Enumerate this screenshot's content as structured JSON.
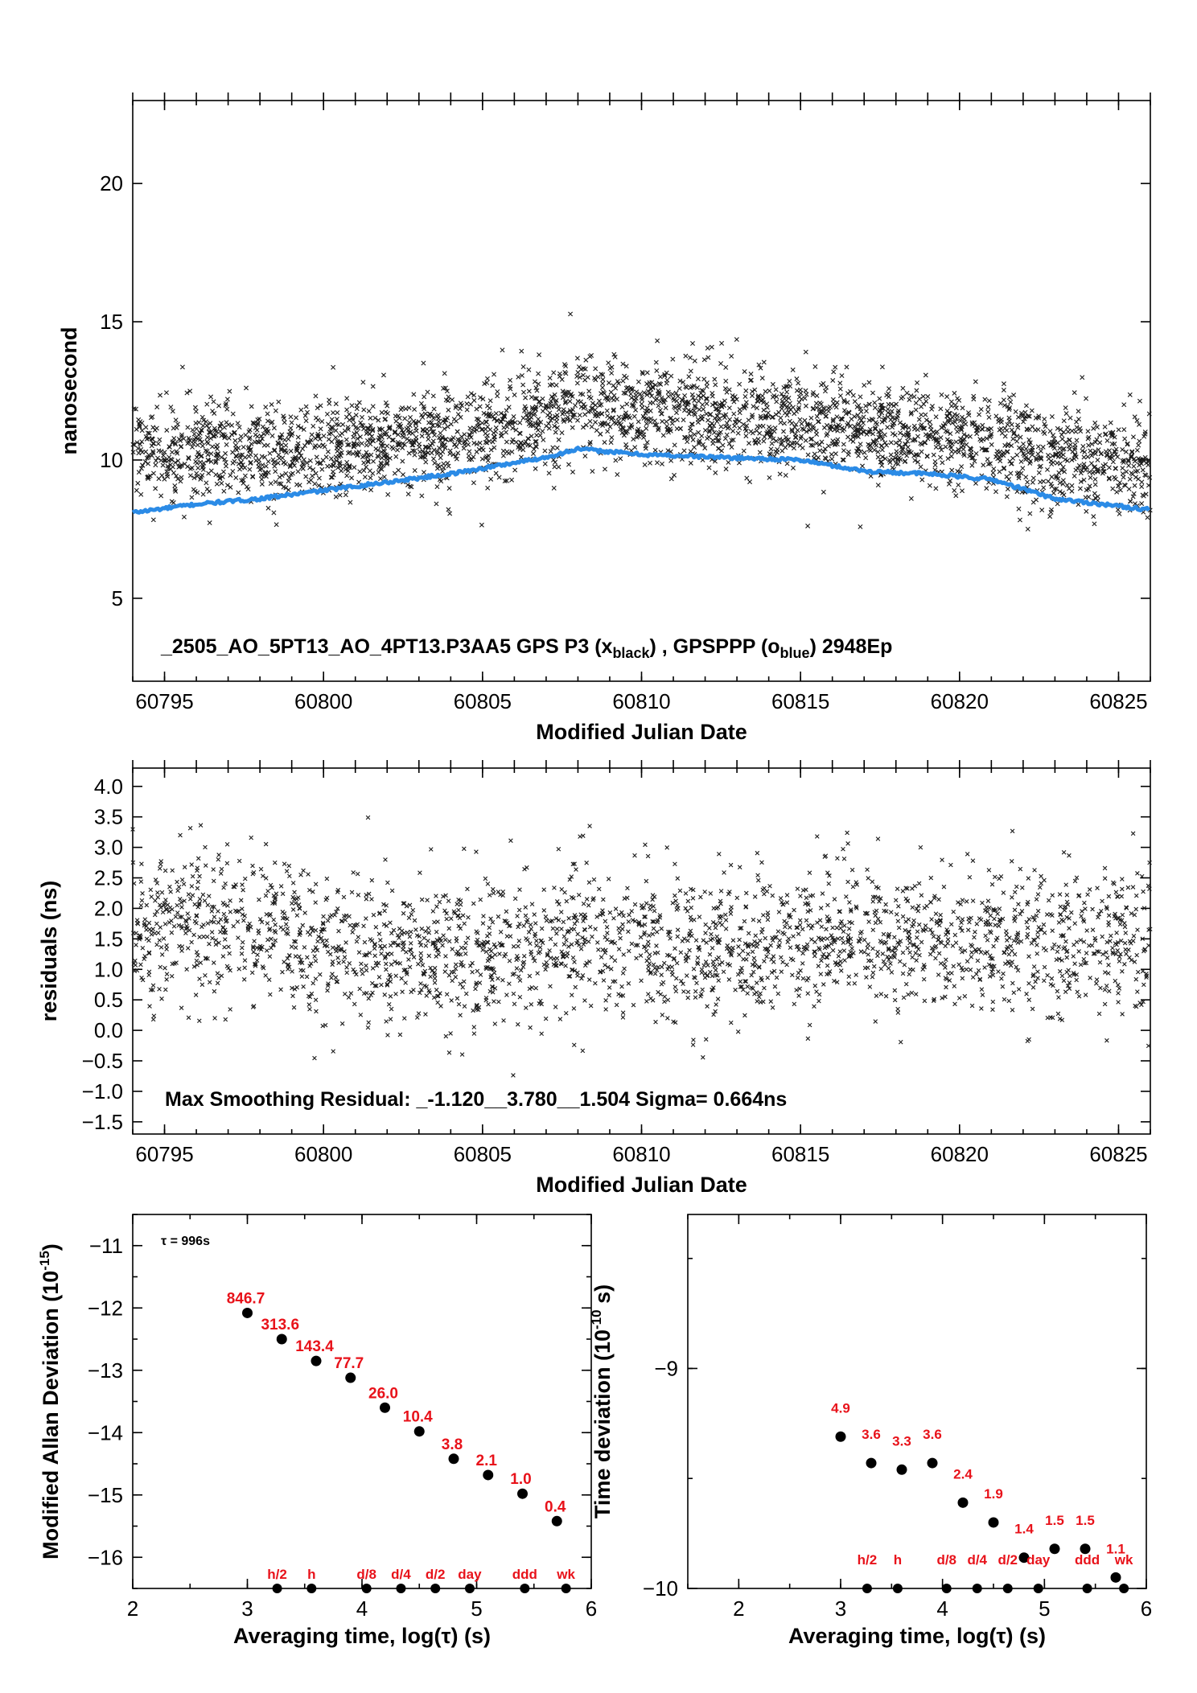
{
  "colors": {
    "black_series": "#1a1a1a",
    "blue_series": "#2b8be6",
    "red_labels": "#e8121a"
  },
  "chart_data": [
    {
      "id": "top",
      "type": "scatter",
      "xlabel": "Modified Julian Date",
      "ylabel": "nanosecond",
      "xlim": [
        60794,
        60826
      ],
      "ylim": [
        2,
        23
      ],
      "xticks": [
        60795,
        60800,
        60805,
        60810,
        60815,
        60820,
        60825
      ],
      "yticks": [
        5,
        10,
        15,
        20
      ],
      "annotation": {
        "prefix": "_2505_AO_5PT13_AO_4PT13.P3AA5     GPS P3 (x",
        "sub1": "black",
        "mid": ") ,  GPSPPP (o",
        "sub2": "blue",
        "suffix": ")  2948Ep"
      },
      "series": [
        {
          "name": "GPS P3",
          "marker": "x",
          "color": "#1a1a1a",
          "trend": [
            [
              60794,
              10.3
            ],
            [
              60798,
              10.3
            ],
            [
              60804,
              10.8
            ],
            [
              60808,
              12.0
            ],
            [
              60812,
              11.6
            ],
            [
              60816,
              11.3
            ],
            [
              60820,
              10.8
            ],
            [
              60823,
              10.2
            ],
            [
              60826,
              9.8
            ]
          ],
          "scatter": 1.05,
          "points_per_day": 95
        },
        {
          "name": "GPSPPP",
          "marker": "o",
          "color": "#2b8be6",
          "trend": [
            [
              60794,
              8.1
            ],
            [
              60796,
              8.4
            ],
            [
              60798,
              8.6
            ],
            [
              60800,
              8.9
            ],
            [
              60804,
              9.5
            ],
            [
              60807,
              10.1
            ],
            [
              60808,
              10.4
            ],
            [
              60810,
              10.2
            ],
            [
              60815,
              10.0
            ],
            [
              60817,
              9.6
            ],
            [
              60819,
              9.5
            ],
            [
              60821,
              9.3
            ],
            [
              60823,
              8.6
            ],
            [
              60826,
              8.2
            ]
          ]
        }
      ]
    },
    {
      "id": "residuals",
      "type": "scatter",
      "xlabel": "Modified Julian Date",
      "ylabel": "residuals (ns)",
      "xlim": [
        60794,
        60826
      ],
      "ylim": [
        -1.7,
        4.3
      ],
      "xticks": [
        60795,
        60800,
        60805,
        60810,
        60815,
        60820,
        60825
      ],
      "yticks": [
        4.0,
        3.5,
        3.0,
        2.5,
        2.0,
        1.5,
        1.0,
        0.5,
        0.0,
        -0.5,
        -1.0,
        -1.5
      ],
      "ytick_labels": [
        "4.0",
        "3.5",
        "3.0",
        "2.5",
        "2.0",
        "1.5",
        "1.0",
        "0.5",
        "0.0",
        "−0.5",
        "−1.0",
        "−1.5"
      ],
      "annotation": "Max Smoothing Residual: _-1.120__3.780__1.504  Sigma= 0.664ns",
      "series": [
        {
          "name": "residuals",
          "marker": "x",
          "color": "#1a1a1a",
          "trend": [
            [
              60794,
              1.8
            ],
            [
              60798,
              1.7
            ],
            [
              60801,
              1.4
            ],
            [
              60805,
              1.2
            ],
            [
              60808,
              1.5
            ],
            [
              60812,
              1.3
            ],
            [
              60816,
              1.6
            ],
            [
              60820,
              1.5
            ],
            [
              60824,
              1.4
            ],
            [
              60826,
              1.5
            ]
          ],
          "scatter": 0.62,
          "points_per_day": 75
        }
      ]
    },
    {
      "id": "mdev",
      "type": "scatter",
      "xlabel": "Averaging time, log(τ) (s)",
      "ylabel": "Modified Allan Deviation (10",
      "ylabel_sup": "-15",
      "ylabel_end": ")",
      "xlim": [
        2,
        6
      ],
      "ylim": [
        -16.5,
        -10.5
      ],
      "xticks": [
        2,
        3,
        4,
        5,
        6
      ],
      "yticks": [
        -11,
        -12,
        -13,
        -14,
        -15,
        -16
      ],
      "ytick_labels": [
        "−11",
        "−12",
        "−13",
        "−14",
        "−15",
        "−16"
      ],
      "tau_note": "τ = 996s",
      "x": [
        3.0,
        3.3,
        3.6,
        3.9,
        4.2,
        4.5,
        4.8,
        5.1,
        5.4,
        5.7
      ],
      "y": [
        -12.08,
        -12.5,
        -12.85,
        -13.12,
        -13.6,
        -13.98,
        -14.42,
        -14.68,
        -14.98,
        -15.42
      ],
      "labels": [
        "846.7",
        "313.6",
        "143.4",
        "77.7",
        "26.0",
        "10.4",
        "3.8",
        "2.1",
        "1.0",
        "0.4"
      ],
      "markers": {
        "x": [
          3.26,
          3.56,
          4.04,
          4.34,
          4.64,
          4.94,
          5.42,
          5.78
        ],
        "labels": [
          "h/2",
          "h",
          "d/8",
          "d/4",
          "d/2",
          "day",
          "ddd",
          "wk"
        ]
      }
    },
    {
      "id": "tdev",
      "type": "scatter",
      "xlabel": "Averaging time, log(τ) (s)",
      "ylabel": "Time deviation (10",
      "ylabel_sup": "-10",
      "ylabel_end": " s)",
      "xlim": [
        1.5,
        6
      ],
      "ylim": [
        -10,
        -8.3
      ],
      "xticks": [
        2,
        3,
        4,
        5,
        6
      ],
      "yticks": [
        -9,
        -10
      ],
      "ytick_labels": [
        "−9",
        "−10"
      ],
      "x": [
        3.0,
        3.3,
        3.6,
        3.9,
        4.2,
        4.5,
        4.8,
        5.1,
        5.4,
        5.7
      ],
      "y": [
        -9.31,
        -9.43,
        -9.46,
        -9.43,
        -9.61,
        -9.7,
        -9.86,
        -9.82,
        -9.82,
        -9.95
      ],
      "labels": [
        "4.9",
        "3.6",
        "3.3",
        "3.6",
        "2.4",
        "1.9",
        "1.4",
        "1.5",
        "1.5",
        "1.1"
      ],
      "markers": {
        "x": [
          3.26,
          3.56,
          4.04,
          4.34,
          4.64,
          4.94,
          5.42,
          5.78
        ],
        "labels": [
          "h/2",
          "h",
          "d/8",
          "d/4",
          "d/2",
          "day",
          "ddd",
          "wk"
        ]
      }
    }
  ]
}
